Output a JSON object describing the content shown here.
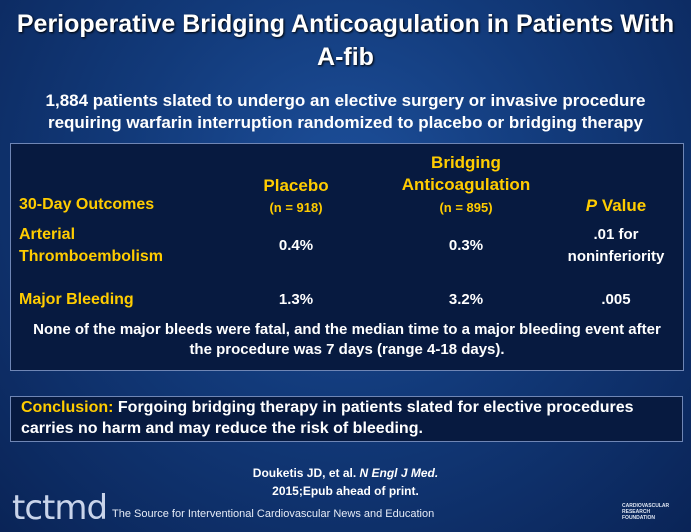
{
  "title": "Perioperative Bridging Anticoagulation in Patients With A-fib",
  "subtitle": "1,884 patients slated to undergo an elective surgery or invasive procedure requiring warfarin interruption randomized to placebo or bridging therapy",
  "table": {
    "header": {
      "outcomes": "30-Day Outcomes",
      "placebo": "Placebo",
      "placebo_n": "(n = 918)",
      "bridging": "Bridging Anticoagulation",
      "bridging_n": "(n = 895)",
      "p_italic": "P",
      "p_rest": "Value"
    },
    "rows": [
      [
        "Arterial Thromboembolism",
        "0.4%",
        "0.3%",
        ".01 for noninferiority"
      ],
      [
        "Major Bleeding",
        "1.3%",
        "3.2%",
        ".005"
      ]
    ],
    "note": "None of the major bleeds were fatal, and the median time to a major bleeding event after the procedure was 7 days (range 4-18 days)."
  },
  "conclusion": {
    "label": "Conclusion:",
    "text": "Forgoing bridging therapy in patients slated for elective procedures carries no harm and may reduce the risk of bleeding."
  },
  "citation": {
    "authors": "Douketis JD, et al.",
    "journal": "N Engl J Med.",
    "details": "2015;Epub ahead of print."
  },
  "footer": {
    "logo": "tctmd",
    "tagline": "The Source for Interventional Cardiovascular News and Education",
    "foundation": "CARDIOVASCULAR RESEARCH FOUNDATION"
  }
}
